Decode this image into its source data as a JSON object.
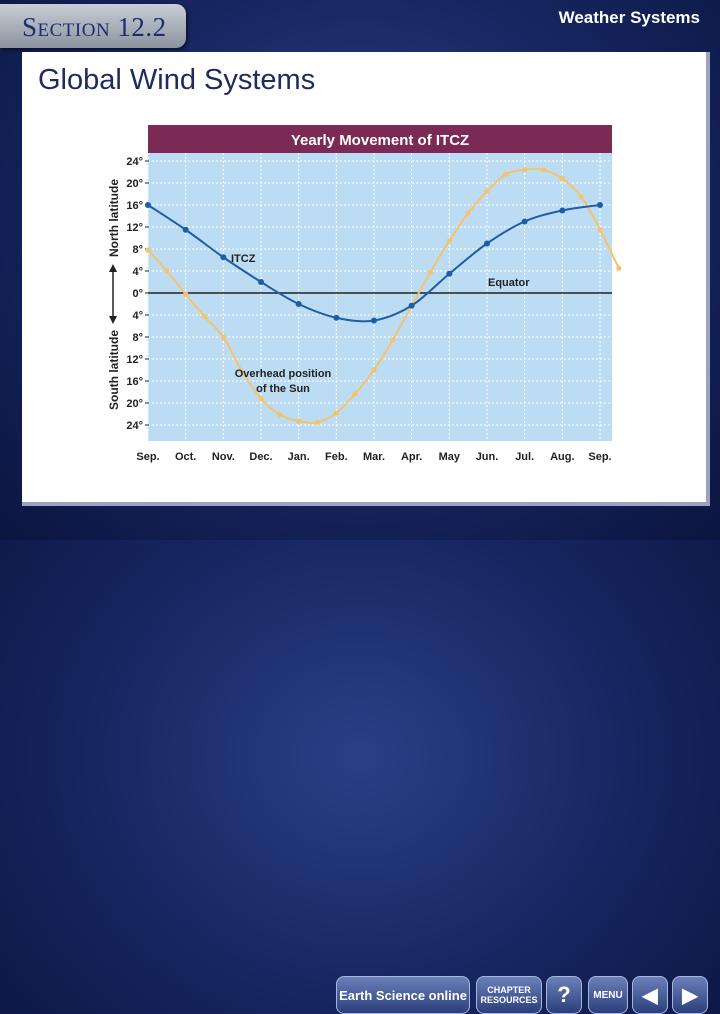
{
  "header": {
    "section": "Section 12.2",
    "topic": "Weather Systems"
  },
  "page": {
    "title": "Global Wind Systems"
  },
  "chart_data": {
    "type": "line",
    "title": "Yearly Movement of ITCZ",
    "categories": [
      "Sep.",
      "Oct.",
      "Nov.",
      "Dec.",
      "Jan.",
      "Feb.",
      "Mar.",
      "Apr.",
      "May",
      "Jun.",
      "Jul.",
      "Aug.",
      "Sep."
    ],
    "yticks": [
      "24°",
      "20°",
      "16°",
      "12°",
      "8°",
      "4°",
      "0°",
      "4°",
      "8°",
      "12°",
      "16°",
      "20°",
      "24°"
    ],
    "ylim": [
      -24,
      24
    ],
    "ylabel_north": "North latitude",
    "ylabel_south": "South latitude",
    "equator_label": "Equator",
    "series": [
      {
        "name": "ITCZ",
        "color": "#1d5ea8",
        "x": [
          0,
          1,
          2,
          3,
          4,
          5,
          6,
          7,
          8,
          9,
          10,
          11,
          12
        ],
        "values": [
          16,
          11.5,
          6.5,
          2,
          -2,
          -4.5,
          -5,
          -2.3,
          3.5,
          9,
          13,
          15,
          16
        ]
      },
      {
        "name": "Overhead position of the Sun",
        "color": "#f4c36a",
        "x": [
          0,
          0.5,
          1,
          1.5,
          2,
          2.5,
          3,
          3.5,
          4,
          4.5,
          5,
          5.5,
          6,
          6.5,
          7,
          7.5,
          8,
          8.5,
          9,
          9.5,
          10,
          10.5,
          11,
          11.5,
          12,
          12.5
        ],
        "values": [
          7.8,
          4,
          -0.2,
          -4.3,
          -8,
          -14.3,
          -19.2,
          -22.1,
          -23.3,
          -23.5,
          -21.8,
          -18.3,
          -14,
          -8.5,
          -2.3,
          3.8,
          9.5,
          14.5,
          18.5,
          21.6,
          22.4,
          22.4,
          20.8,
          17.5,
          11.5,
          4.5
        ]
      }
    ],
    "annotations": {
      "itcz": "ITCZ",
      "sun_line1": "Overhead position",
      "sun_line2": "of the Sun"
    }
  },
  "nav": {
    "earth_science_online": "Earth Science online",
    "chapter_resources_line1": "CHAPTER",
    "chapter_resources_line2": "RESOURCES",
    "help": "?",
    "menu": "MENU",
    "prev": "◀",
    "next": "▶"
  }
}
